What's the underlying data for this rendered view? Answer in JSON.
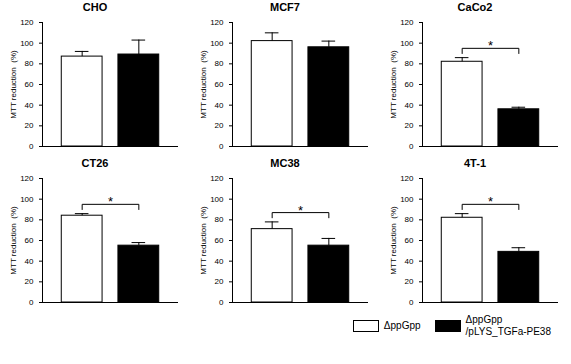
{
  "chart_data": [
    {
      "type": "bar",
      "title": "CHO",
      "ylabel": "MTT reduction  (%)",
      "ylim": [
        0,
        120
      ],
      "yticks": [
        0,
        20,
        40,
        60,
        80,
        100,
        120
      ],
      "tick_labels": "y",
      "series": [
        {
          "name": "ΔppGpp",
          "color": "#ffffff",
          "values": [
            87
          ],
          "errors": [
            5
          ]
        },
        {
          "name": "ΔppGpp\n/pLYS_TGFa-PE38",
          "color": "#000000",
          "values": [
            89
          ],
          "errors": [
            14
          ]
        }
      ]
    },
    {
      "type": "bar",
      "title": "MCF7",
      "ylabel": "MTT reduction  (%)",
      "ylim": [
        0,
        120
      ],
      "yticks": [
        0,
        20,
        40,
        60,
        80,
        100,
        120
      ],
      "tick_labels": "y",
      "series": [
        {
          "name": "ΔppGpp",
          "color": "#ffffff",
          "values": [
            102
          ],
          "errors": [
            8
          ]
        },
        {
          "name": "ΔppGpp\n/pLYS_TGFa-PE38",
          "color": "#000000",
          "values": [
            96
          ],
          "errors": [
            6
          ]
        }
      ]
    },
    {
      "type": "bar",
      "title": "CaCo2",
      "ylabel": "MTT reduction  (%)",
      "ylim": [
        0,
        120
      ],
      "yticks": [
        0,
        20,
        40,
        60,
        80,
        100,
        120
      ],
      "tick_labels": "y",
      "annotation": "*",
      "series": [
        {
          "name": "ΔppGpp",
          "color": "#ffffff",
          "values": [
            82
          ],
          "errors": [
            4
          ]
        },
        {
          "name": "ΔppGpp\n/pLYS_TGFa-PE38",
          "color": "#000000",
          "values": [
            36
          ],
          "errors": [
            2
          ]
        }
      ]
    },
    {
      "type": "bar",
      "title": "CT26",
      "ylabel": "MTT reduction  (%)",
      "ylim": [
        0,
        120
      ],
      "yticks": [
        0,
        20,
        40,
        60,
        80,
        100,
        120
      ],
      "tick_labels": "y",
      "annotation": "*",
      "series": [
        {
          "name": "ΔppGpp",
          "color": "#ffffff",
          "values": [
            84
          ],
          "errors": [
            2
          ]
        },
        {
          "name": "ΔppGpp\n/pLYS_TGFa-PE38",
          "color": "#000000",
          "values": [
            55
          ],
          "errors": [
            3
          ]
        }
      ]
    },
    {
      "type": "bar",
      "title": "MC38",
      "ylabel": "MTT reduction  (%)",
      "ylim": [
        0,
        120
      ],
      "yticks": [
        0,
        20,
        40,
        60,
        80,
        100,
        120
      ],
      "tick_labels": "y",
      "annotation": "*",
      "series": [
        {
          "name": "ΔppGpp",
          "color": "#ffffff",
          "values": [
            71
          ],
          "errors": [
            7
          ]
        },
        {
          "name": "ΔppGpp\n/pLYS_TGFa-PE38",
          "color": "#000000",
          "values": [
            55
          ],
          "errors": [
            7
          ]
        }
      ]
    },
    {
      "type": "bar",
      "title": "4T-1",
      "ylabel": "MTT reduction  (%)",
      "ylim": [
        0,
        120
      ],
      "yticks": [
        0,
        20,
        40,
        60,
        80,
        100,
        120
      ],
      "tick_labels": "y",
      "annotation": "*",
      "series": [
        {
          "name": "ΔppGpp",
          "color": "#ffffff",
          "values": [
            82
          ],
          "errors": [
            4
          ]
        },
        {
          "name": "ΔppGpp\n/pLYS_TGFa-PE38",
          "color": "#000000",
          "values": [
            49
          ],
          "errors": [
            4
          ]
        }
      ]
    }
  ]
}
